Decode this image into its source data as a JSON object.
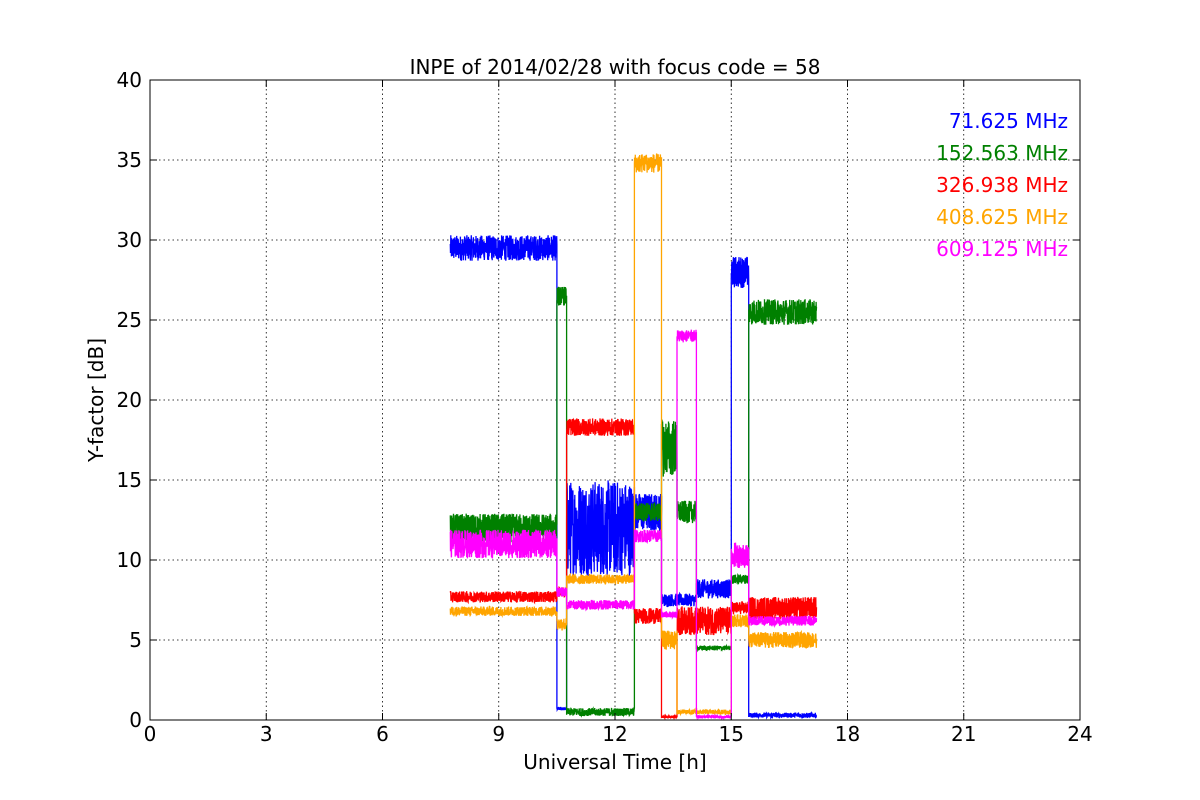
{
  "chart_data": {
    "type": "line",
    "title": "INPE of 2014/02/28 with focus code = 58",
    "xlabel": "Universal Time [h]",
    "ylabel": "Y-factor [dB]",
    "xlim": [
      0,
      24
    ],
    "ylim": [
      0,
      40
    ],
    "xticks": [
      0,
      3,
      6,
      9,
      12,
      15,
      18,
      21,
      24
    ],
    "yticks": [
      0,
      5,
      10,
      15,
      20,
      25,
      30,
      35,
      40
    ],
    "xtick_labels": [
      "0",
      "3",
      "6",
      "9",
      "12",
      "15",
      "18",
      "21",
      "24"
    ],
    "ytick_labels": [
      "0",
      "5",
      "10",
      "15",
      "20",
      "25",
      "30",
      "35",
      "40"
    ],
    "grid": true,
    "legend_position": "top-right",
    "series": [
      {
        "name": "71.625 MHz",
        "color": "#0000ff",
        "segments": [
          {
            "x0": 7.75,
            "x1": 10.5,
            "y": 29.5,
            "noise": 0.8
          },
          {
            "x0": 10.5,
            "x1": 10.75,
            "y": 0.7,
            "noise": 0.1
          },
          {
            "x0": 10.75,
            "x1": 12.5,
            "y": 12.0,
            "noise": 3.0
          },
          {
            "x0": 12.5,
            "x1": 13.2,
            "y": 13.0,
            "noise": 1.2
          },
          {
            "x0": 13.2,
            "x1": 14.1,
            "y": 7.5,
            "noise": 0.4
          },
          {
            "x0": 14.1,
            "x1": 15.0,
            "y": 8.2,
            "noise": 0.6
          },
          {
            "x0": 15.0,
            "x1": 15.45,
            "y": 28.0,
            "noise": 1.0
          },
          {
            "x0": 15.45,
            "x1": 17.2,
            "y": 0.3,
            "noise": 0.15
          }
        ]
      },
      {
        "name": "152.563 MHz",
        "color": "#008000",
        "segments": [
          {
            "x0": 7.75,
            "x1": 10.5,
            "y": 12.0,
            "noise": 0.9
          },
          {
            "x0": 10.5,
            "x1": 10.75,
            "y": 26.5,
            "noise": 0.6
          },
          {
            "x0": 10.75,
            "x1": 12.5,
            "y": 0.5,
            "noise": 0.25
          },
          {
            "x0": 12.5,
            "x1": 13.2,
            "y": 13.0,
            "noise": 0.6
          },
          {
            "x0": 13.2,
            "x1": 13.6,
            "y": 17.0,
            "noise": 1.8
          },
          {
            "x0": 13.6,
            "x1": 14.1,
            "y": 13.0,
            "noise": 0.7
          },
          {
            "x0": 14.1,
            "x1": 15.0,
            "y": 4.5,
            "noise": 0.15
          },
          {
            "x0": 15.0,
            "x1": 15.45,
            "y": 8.8,
            "noise": 0.3
          },
          {
            "x0": 15.45,
            "x1": 17.2,
            "y": 25.5,
            "noise": 0.8
          }
        ]
      },
      {
        "name": "326.938 MHz",
        "color": "#ff0000",
        "segments": [
          {
            "x0": 7.75,
            "x1": 10.5,
            "y": 7.7,
            "noise": 0.35
          },
          {
            "x0": 10.5,
            "x1": 10.75,
            "y": 8.0,
            "noise": 0.3
          },
          {
            "x0": 10.75,
            "x1": 12.5,
            "y": 18.3,
            "noise": 0.55
          },
          {
            "x0": 12.5,
            "x1": 13.2,
            "y": 6.5,
            "noise": 0.5
          },
          {
            "x0": 13.2,
            "x1": 13.6,
            "y": 0.2,
            "noise": 0.08
          },
          {
            "x0": 13.6,
            "x1": 15.0,
            "y": 6.2,
            "noise": 0.9
          },
          {
            "x0": 15.0,
            "x1": 15.45,
            "y": 7.0,
            "noise": 0.4
          },
          {
            "x0": 15.45,
            "x1": 17.2,
            "y": 7.0,
            "noise": 0.7
          }
        ]
      },
      {
        "name": "408.625 MHz",
        "color": "#ffa500",
        "segments": [
          {
            "x0": 7.75,
            "x1": 10.5,
            "y": 6.8,
            "noise": 0.3
          },
          {
            "x0": 10.5,
            "x1": 10.75,
            "y": 6.0,
            "noise": 0.4
          },
          {
            "x0": 10.75,
            "x1": 12.5,
            "y": 8.8,
            "noise": 0.3
          },
          {
            "x0": 12.5,
            "x1": 13.2,
            "y": 34.8,
            "noise": 0.6
          },
          {
            "x0": 13.2,
            "x1": 13.6,
            "y": 5.0,
            "noise": 0.6
          },
          {
            "x0": 13.6,
            "x1": 15.0,
            "y": 0.5,
            "noise": 0.15
          },
          {
            "x0": 15.0,
            "x1": 15.45,
            "y": 6.2,
            "noise": 0.4
          },
          {
            "x0": 15.45,
            "x1": 17.2,
            "y": 5.0,
            "noise": 0.5
          }
        ]
      },
      {
        "name": "609.125 MHz",
        "color": "#ff00ff",
        "segments": [
          {
            "x0": 7.75,
            "x1": 10.5,
            "y": 11.0,
            "noise": 0.9
          },
          {
            "x0": 10.5,
            "x1": 10.75,
            "y": 8.0,
            "noise": 0.3
          },
          {
            "x0": 10.75,
            "x1": 12.5,
            "y": 7.2,
            "noise": 0.3
          },
          {
            "x0": 12.5,
            "x1": 13.2,
            "y": 11.5,
            "noise": 0.4
          },
          {
            "x0": 13.2,
            "x1": 13.6,
            "y": 6.6,
            "noise": 0.2
          },
          {
            "x0": 13.6,
            "x1": 14.1,
            "y": 24.0,
            "noise": 0.4
          },
          {
            "x0": 14.1,
            "x1": 15.0,
            "y": 0.2,
            "noise": 0.1
          },
          {
            "x0": 15.0,
            "x1": 15.45,
            "y": 10.3,
            "noise": 0.8
          },
          {
            "x0": 15.45,
            "x1": 17.2,
            "y": 6.2,
            "noise": 0.3
          }
        ]
      }
    ]
  }
}
